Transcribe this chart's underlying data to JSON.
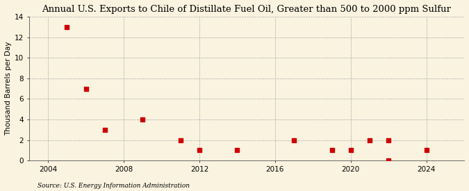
{
  "title": "Annual U.S. Exports to Chile of Distillate Fuel Oil, Greater than 500 to 2000 ppm Sulfur",
  "ylabel": "Thousand Barrels per Day",
  "source": "Source: U.S. Energy Information Administration",
  "x_data": [
    2005,
    2006,
    2007,
    2009,
    2011,
    2012,
    2014,
    2017,
    2019,
    2020,
    2021,
    2022,
    2022,
    2024
  ],
  "y_data": [
    13,
    7,
    3,
    4,
    2,
    1,
    1,
    2,
    1,
    1,
    2,
    2,
    0,
    1
  ],
  "marker_color": "#CC0000",
  "marker_size": 4,
  "background_color": "#FAF3E0",
  "grid_color": "#999999",
  "xlim": [
    2003,
    2026
  ],
  "ylim": [
    0,
    14
  ],
  "xticks": [
    2004,
    2008,
    2012,
    2016,
    2020,
    2024
  ],
  "yticks": [
    0,
    2,
    4,
    6,
    8,
    10,
    12,
    14
  ],
  "title_fontsize": 9.5,
  "label_fontsize": 7.5,
  "tick_fontsize": 7.5,
  "source_fontsize": 6.5
}
